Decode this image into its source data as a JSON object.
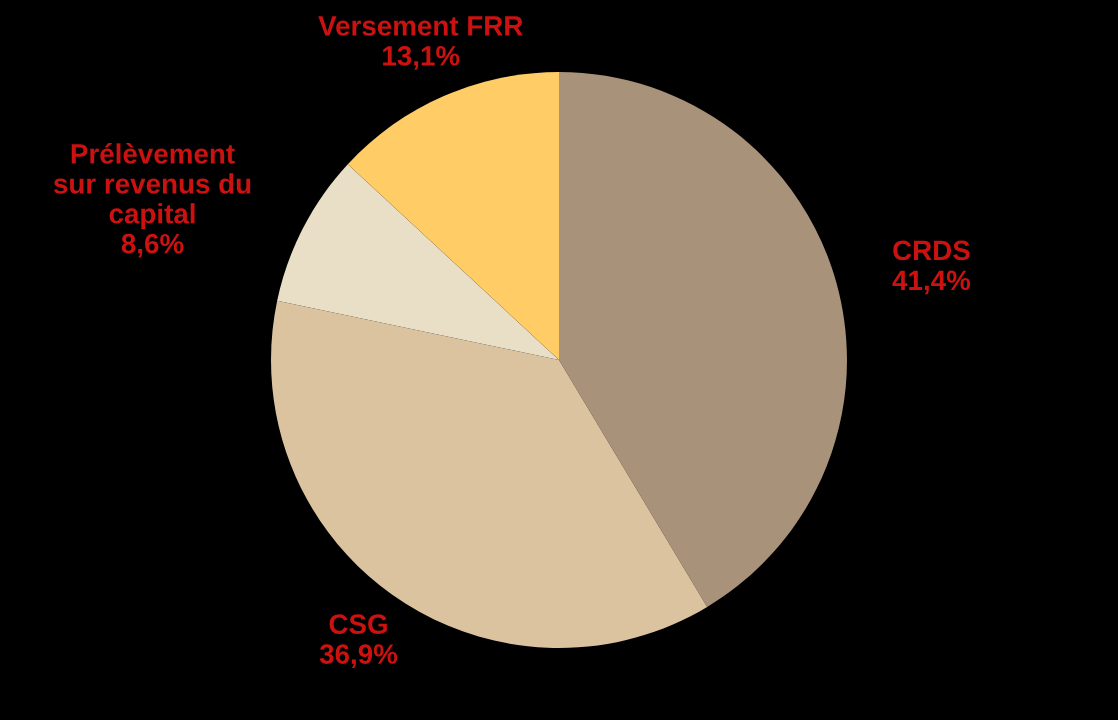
{
  "chart_data": {
    "type": "pie",
    "categories": [
      "CRDS",
      "CSG",
      "Prélèvement\nsur revenus du\ncapital",
      "Versement FRR"
    ],
    "values": [
      41.4,
      36.9,
      8.6,
      13.1
    ],
    "value_labels": [
      "41,4%",
      "36,9%",
      "8,6%",
      "13,1%"
    ],
    "colors": [
      "#a8927a",
      "#dcc39f",
      "#e8dfc6",
      "#ffcc66"
    ]
  }
}
